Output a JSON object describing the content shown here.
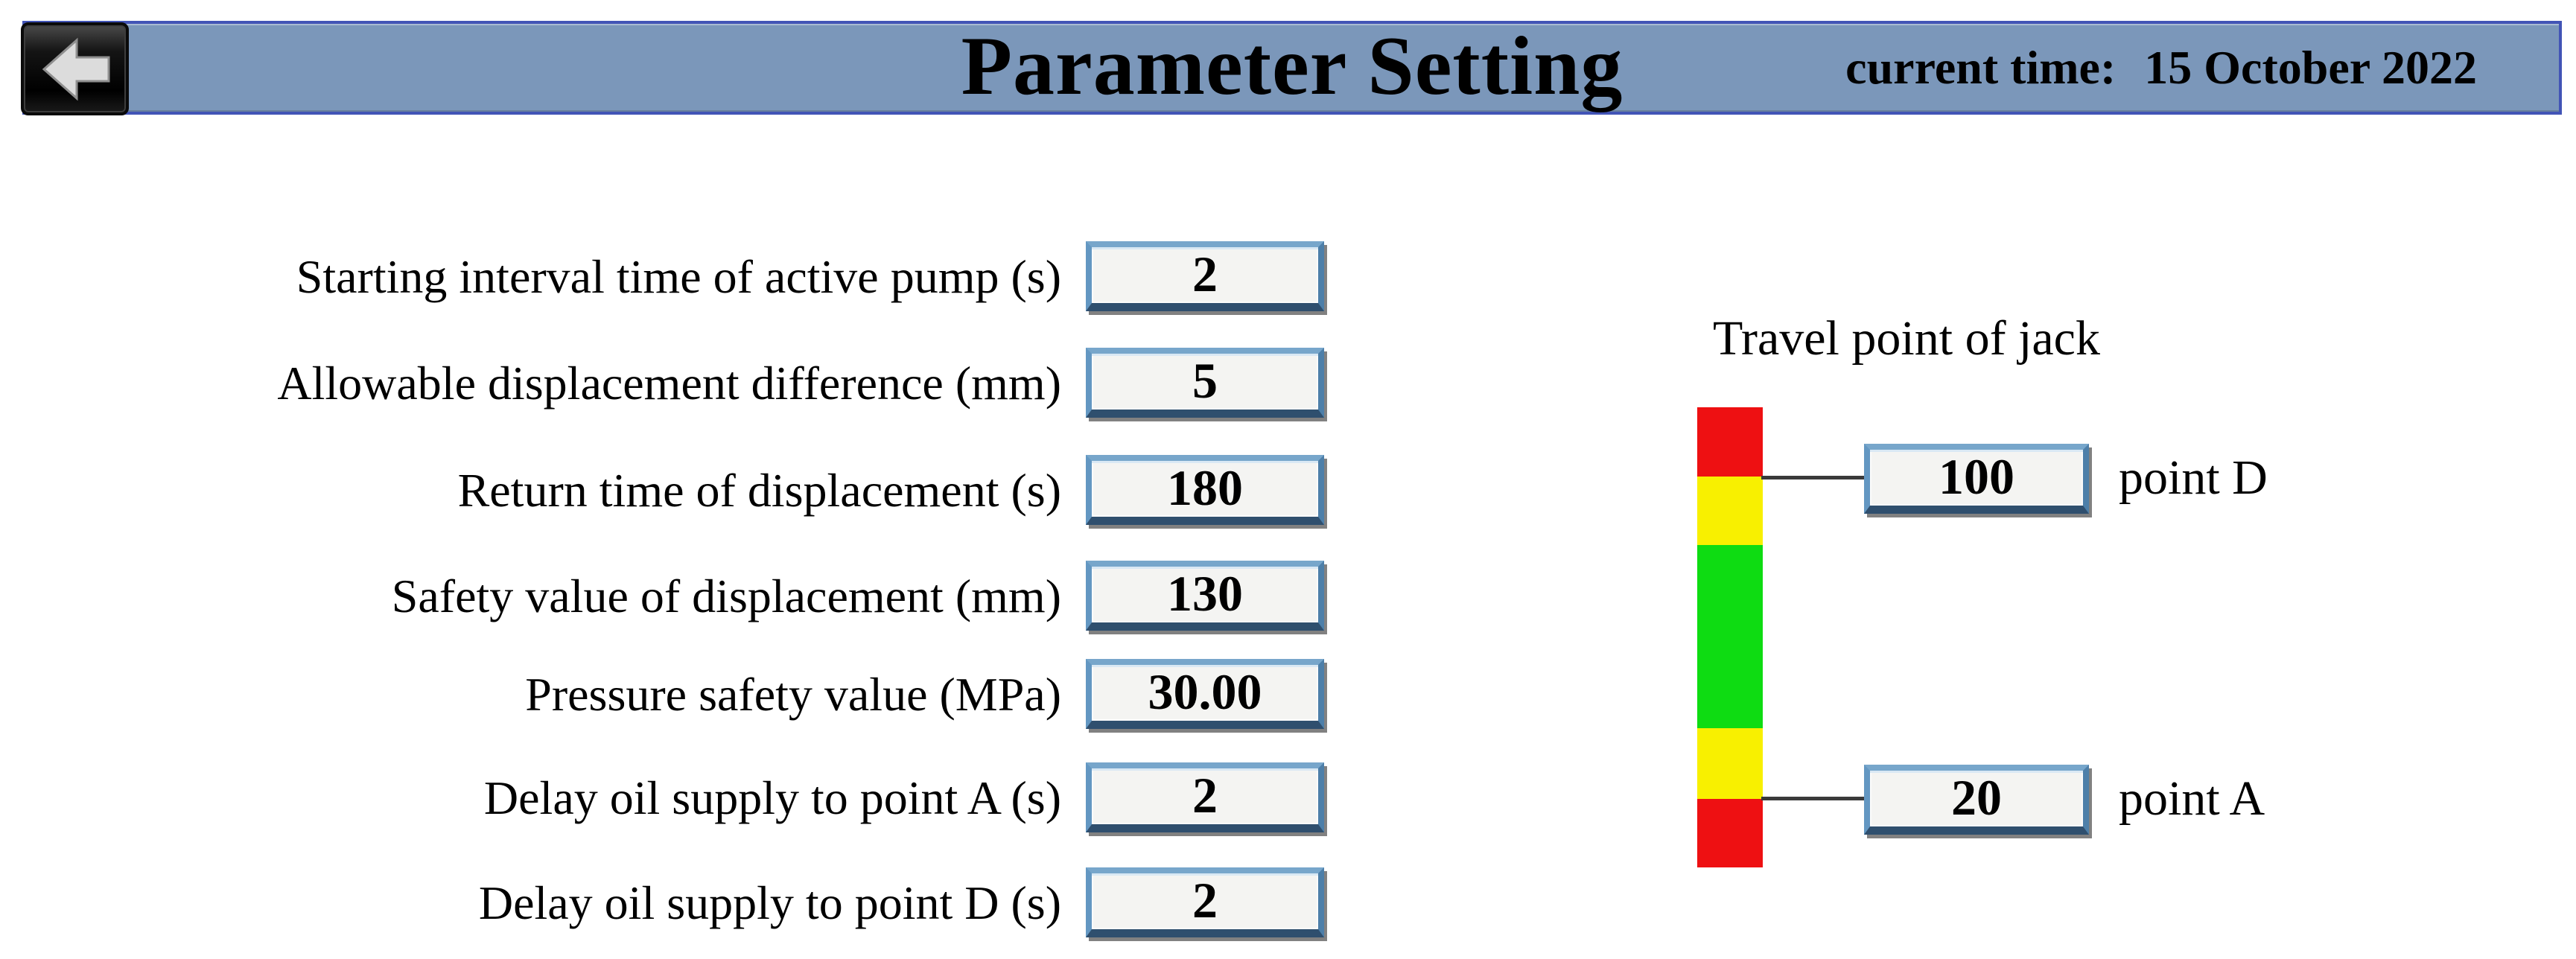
{
  "header": {
    "title": "Parameter Setting",
    "time_label": "current time:",
    "time_value": "15 October 2022"
  },
  "parameters": [
    {
      "label": "Starting interval time of active pump (s)",
      "value": "2"
    },
    {
      "label": "Allowable displacement difference (mm)",
      "value": "5"
    },
    {
      "label": "Return time of displacement (s)",
      "value": "180"
    },
    {
      "label": "Safety value of displacement (mm)",
      "value": "130"
    },
    {
      "label": "Pressure safety value (MPa)",
      "value": "30.00"
    },
    {
      "label": "Delay oil supply to point A (s)",
      "value": "2"
    },
    {
      "label": "Delay oil supply to point D (s)",
      "value": "2"
    }
  ],
  "travel": {
    "title": "Travel point of jack",
    "points": [
      {
        "label": "point D",
        "value": "100"
      },
      {
        "label": "point A",
        "value": "20"
      }
    ],
    "bar_segments": [
      {
        "name": "red-top",
        "color": "#ee1012",
        "pct": 15.0
      },
      {
        "name": "yellow-top",
        "color": "#f8f000",
        "pct": 15.0
      },
      {
        "name": "green-middle",
        "color": "#0edc12",
        "pct": 39.7
      },
      {
        "name": "yellow-bottom",
        "color": "#f8f000",
        "pct": 15.4
      },
      {
        "name": "red-bottom",
        "color": "#ee1012",
        "pct": 14.9
      }
    ]
  },
  "colors": {
    "header_bar": "#7b97ba",
    "header_border": "#4254b6",
    "field_bg": "#f4f4f2",
    "field_border_light": "#77a6cb",
    "field_border_mid": "#6397c2",
    "field_border_dark": "#2f4f6e",
    "connector": "#3a3a3a",
    "bar_red": "#ee1012",
    "bar_yellow": "#f8f000",
    "bar_green": "#0edc12"
  }
}
